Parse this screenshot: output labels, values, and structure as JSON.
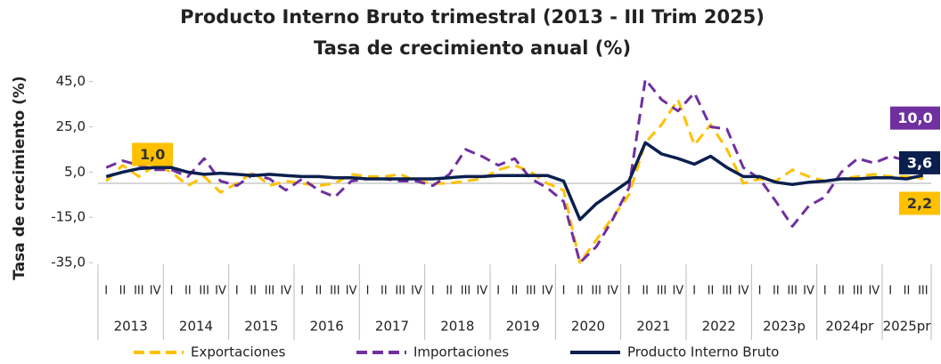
{
  "chart_data": {
    "type": "line",
    "title": "Producto Interno Bruto trimestral (2013 - III Trim 2025)",
    "subtitle": "Tasa de crecimiento anual (%)",
    "y_label": "Tasa de crecimiento (%)",
    "categories": [
      "I",
      "II",
      "III",
      "IV",
      "I",
      "II",
      "III",
      "IV",
      "I",
      "II",
      "III",
      "IV",
      "I",
      "II",
      "III",
      "IV",
      "I",
      "II",
      "III",
      "IV",
      "I",
      "II",
      "III",
      "IV",
      "I",
      "II",
      "III",
      "IV",
      "I",
      "II",
      "III",
      "IV",
      "I",
      "II",
      "III",
      "IV",
      "I",
      "II",
      "III",
      "IV",
      "I",
      "II",
      "III",
      "IV",
      "I",
      "II",
      "III",
      "IV",
      "I",
      "II",
      "III"
    ],
    "years": [
      "2013",
      "2014",
      "2015",
      "2016",
      "2017",
      "2018",
      "2019",
      "2020",
      "2021",
      "2022",
      "2023p",
      "2024pr",
      "2025pr"
    ],
    "ylim": [
      -35,
      50
    ],
    "yticks": [
      {
        "value": 45,
        "label": "45,0"
      },
      {
        "value": 25,
        "label": "25,0"
      },
      {
        "value": 5,
        "label": "5,0"
      },
      {
        "value": -15,
        "label": "-15,0"
      },
      {
        "value": -35,
        "label": "-35,0"
      }
    ],
    "zero_line": true,
    "series": [
      {
        "name": "Exportaciones",
        "color": "#ffc000",
        "dash": true,
        "values": [
          1,
          8,
          3,
          8,
          5,
          -1,
          3,
          -4,
          0,
          5,
          -1,
          1,
          0,
          -1,
          0,
          4,
          3,
          3,
          4,
          1,
          0,
          0,
          1,
          2,
          6,
          8,
          5,
          0,
          -3,
          -35,
          -25,
          -15,
          -5,
          18,
          26,
          37,
          17,
          26,
          15,
          0,
          2,
          1,
          6,
          3,
          1,
          2,
          3,
          4,
          3,
          3,
          2.2
        ],
        "value_labels": [
          "1,0",
          null,
          null,
          null,
          null,
          null,
          null,
          null,
          null,
          null,
          null,
          null,
          null,
          null,
          null,
          null,
          null,
          null,
          null,
          null,
          null,
          null,
          null,
          null,
          null,
          null,
          null,
          null,
          null,
          null,
          null,
          null,
          null,
          null,
          null,
          null,
          null,
          null,
          null,
          null,
          null,
          null,
          null,
          null,
          null,
          null,
          null,
          null,
          null,
          null,
          "2,2"
        ]
      },
      {
        "name": "Importaciones",
        "color": "#7030a0",
        "dash": true,
        "values": [
          7,
          10,
          8,
          6,
          6,
          3,
          11,
          1,
          -1,
          4,
          2,
          -3,
          2,
          -3,
          -6,
          1,
          2,
          2,
          1,
          1,
          -1,
          4,
          15,
          12,
          8,
          11,
          2,
          -2,
          -8,
          -35,
          -28,
          -16,
          -2,
          46,
          37,
          32,
          40,
          25,
          24,
          7,
          2,
          -8,
          -19,
          -10,
          -6,
          5,
          11,
          9,
          12,
          10,
          10.0
        ],
        "value_labels": [
          null,
          null,
          null,
          null,
          null,
          null,
          null,
          null,
          null,
          null,
          null,
          null,
          null,
          null,
          null,
          null,
          null,
          null,
          null,
          null,
          null,
          null,
          null,
          null,
          null,
          null,
          null,
          null,
          null,
          null,
          null,
          null,
          null,
          null,
          null,
          null,
          null,
          null,
          null,
          null,
          null,
          null,
          null,
          null,
          null,
          null,
          null,
          null,
          null,
          null,
          "10,0"
        ]
      },
      {
        "name": "Producto Interno Bruto",
        "color": "#0b1f4f",
        "dash": false,
        "values": [
          3,
          5,
          6.5,
          7,
          7,
          5,
          4,
          4.5,
          4,
          3.5,
          4,
          3.5,
          3,
          3,
          2.5,
          2.5,
          2,
          2,
          2,
          2,
          2,
          2.5,
          3,
          3,
          3.5,
          3.5,
          3.5,
          3.5,
          1,
          -16,
          -9,
          -4,
          1,
          18,
          13,
          11,
          8.5,
          12,
          7,
          3,
          3,
          0.5,
          -0.5,
          0.5,
          1,
          2,
          2,
          2.5,
          2.5,
          2,
          3.6
        ],
        "value_labels": [
          null,
          null,
          null,
          null,
          null,
          null,
          null,
          null,
          null,
          null,
          null,
          null,
          null,
          null,
          null,
          null,
          null,
          null,
          null,
          null,
          null,
          null,
          null,
          null,
          null,
          null,
          null,
          null,
          null,
          null,
          null,
          null,
          null,
          null,
          null,
          null,
          null,
          null,
          null,
          null,
          null,
          null,
          null,
          null,
          null,
          null,
          null,
          null,
          null,
          null,
          "3,6"
        ]
      }
    ]
  }
}
